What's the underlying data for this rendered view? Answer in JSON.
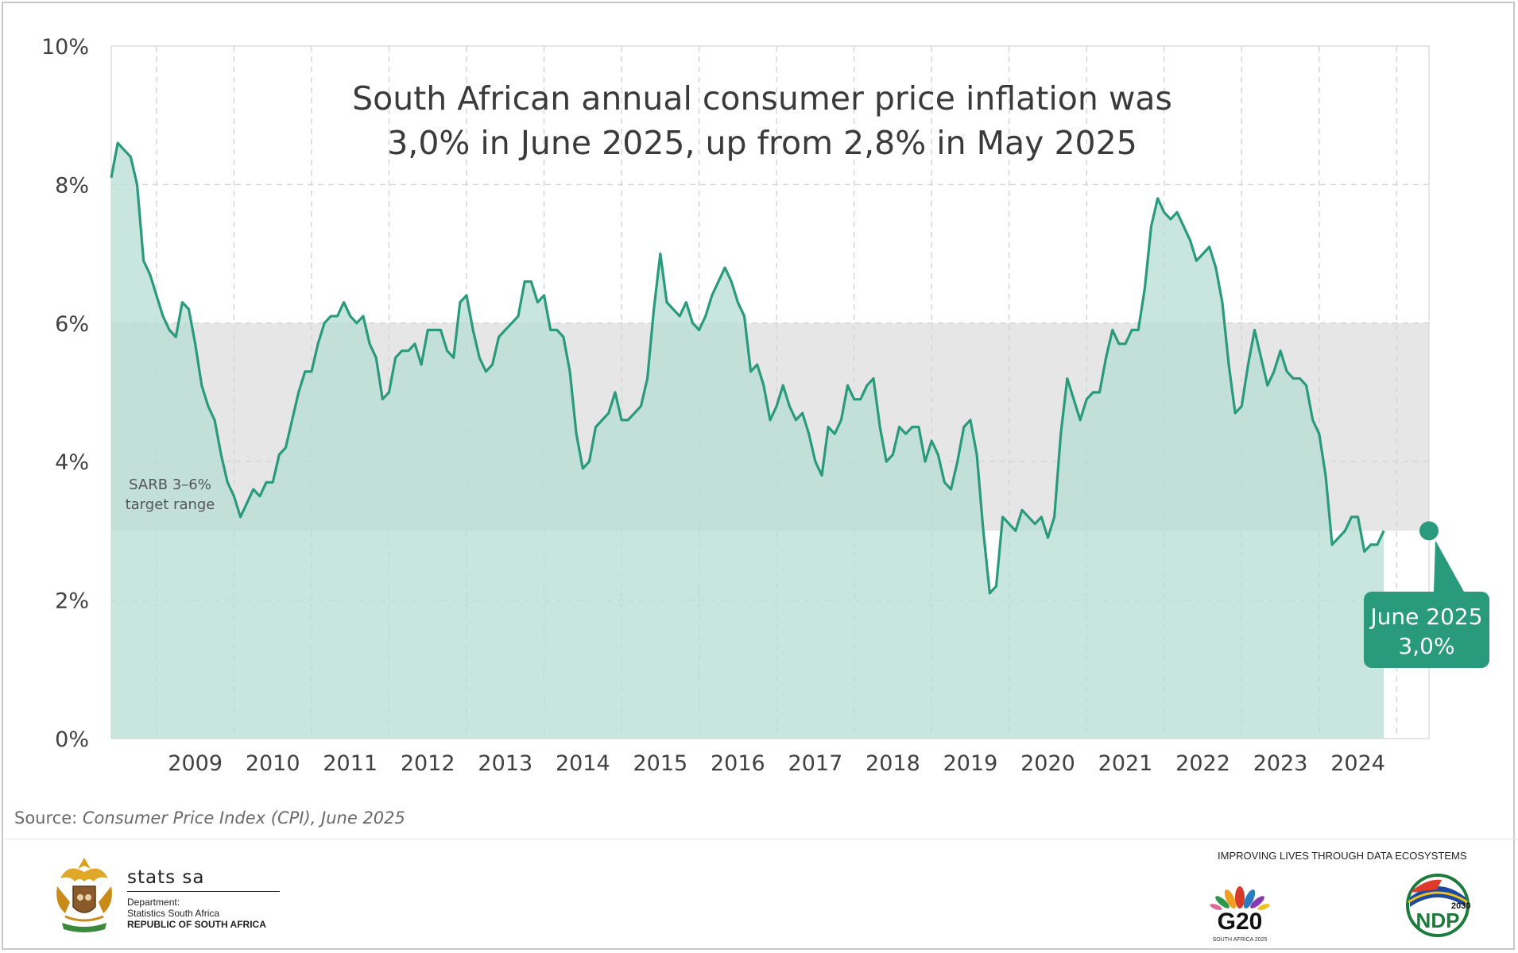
{
  "chart_data": {
    "type": "area",
    "title": [
      "South African annual consumer price inflation was",
      "3,0% in June 2025, up from 2,8% in May 2025"
    ],
    "xlabel": "",
    "ylabel": "",
    "y_ticks": [
      "0%",
      "2%",
      "4%",
      "6%",
      "8%",
      "10%"
    ],
    "y_tick_values": [
      0,
      2,
      4,
      6,
      8,
      10
    ],
    "ylim": [
      0,
      10
    ],
    "x_ticks": [
      "2009",
      "2010",
      "2011",
      "2012",
      "2013",
      "2014",
      "2015",
      "2016",
      "2017",
      "2018",
      "2019",
      "2020",
      "2021",
      "2022",
      "2023",
      "2024"
    ],
    "xlim": [
      "2008-06",
      "2025-06"
    ],
    "grid": true,
    "target_band": {
      "label_lines": [
        "SARB 3–6%",
        "target range"
      ],
      "low": 3,
      "high": 6
    },
    "annotation": {
      "lines": [
        "June 2025",
        "3,0%"
      ],
      "x": "2025-06",
      "y": 3.0
    },
    "series": [
      {
        "start": "2008-06",
        "values": [
          8.1,
          8.6,
          8.5,
          8.4,
          8.0,
          6.9,
          6.7,
          6.4,
          6.1,
          5.9,
          5.8,
          6.3,
          6.2,
          5.7,
          5.1,
          4.8,
          4.6,
          4.1,
          3.7,
          3.5,
          3.2,
          3.4,
          3.6,
          3.5,
          3.7,
          3.7,
          4.1,
          4.2,
          4.6,
          5.0,
          5.3,
          5.3,
          5.7,
          6.0,
          6.1,
          6.1,
          6.3,
          6.1,
          6.0,
          6.1,
          5.7,
          5.5,
          4.9,
          5.0,
          5.5,
          5.6,
          5.6,
          5.7,
          5.4,
          5.9,
          5.9,
          5.9,
          5.6,
          5.5,
          6.3,
          6.4,
          5.9,
          5.5,
          5.3,
          5.4,
          5.8,
          5.9,
          6.0,
          6.1,
          6.6,
          6.6,
          6.3,
          6.4,
          5.9,
          5.9,
          5.8,
          5.3,
          4.4,
          3.9,
          4.0,
          4.5,
          4.6,
          4.7,
          5.0,
          4.6,
          4.6,
          4.7,
          4.8,
          5.2,
          6.2,
          7.0,
          6.3,
          6.2,
          6.1,
          6.3,
          6.0,
          5.9,
          6.1,
          6.4,
          6.6,
          6.8,
          6.6,
          6.3,
          6.1,
          5.3,
          5.4,
          5.1,
          4.6,
          4.8,
          5.1,
          4.8,
          4.6,
          4.7,
          4.4,
          4.0,
          3.8,
          4.5,
          4.4,
          4.6,
          5.1,
          4.9,
          4.9,
          5.1,
          5.2,
          4.5,
          4.0,
          4.1,
          4.5,
          4.4,
          4.5,
          4.5,
          4.0,
          4.3,
          4.1,
          3.7,
          3.6,
          4.0,
          4.5,
          4.6,
          4.1,
          3.0,
          2.1,
          2.2,
          3.2,
          3.1,
          3.0,
          3.3,
          3.2,
          3.1,
          3.2,
          2.9,
          3.2,
          4.4,
          5.2,
          4.9,
          4.6,
          4.9,
          5.0,
          5.0,
          5.5,
          5.9,
          5.7,
          5.7,
          5.9,
          5.9,
          6.5,
          7.4,
          7.8,
          7.6,
          7.5,
          7.6,
          7.4,
          7.2,
          6.9,
          7.0,
          7.1,
          6.8,
          6.3,
          5.4,
          4.7,
          4.8,
          5.4,
          5.9,
          5.5,
          5.1,
          5.3,
          5.6,
          5.3,
          5.2,
          5.2,
          5.1,
          4.6,
          4.4,
          3.8,
          2.8,
          2.9,
          3.0,
          3.2,
          3.2,
          2.7,
          2.8,
          2.8,
          3.0
        ]
      }
    ],
    "colors": {
      "line": "#2a9a7c",
      "fill": "#b5ddd3",
      "band": "#e6e6e6",
      "callout": "#2a9a7c"
    }
  },
  "source": {
    "prefix": "Source: ",
    "title": "Consumer Price Index (CPI), June 2025"
  },
  "footer": {
    "statssa_name": "stats sa",
    "dept_lines": [
      "Department:",
      "Statistics South Africa"
    ],
    "republic": "REPUBLIC OF SOUTH AFRICA",
    "tagline": "IMPROVING LIVES THROUGH DATA ECOSYSTEMS",
    "g20_text": "G20",
    "g20_sub": "SOUTH AFRICA 2025",
    "ndp_year": "2030",
    "ndp_text": "NDP"
  }
}
